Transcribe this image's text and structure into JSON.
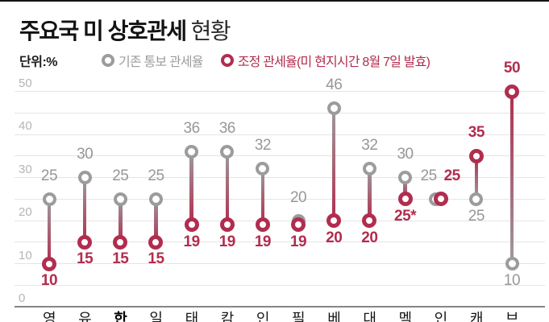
{
  "title": {
    "bold": "주요국 미 상호관세",
    "regular": "현황"
  },
  "unit_label": "단위:%",
  "legend": {
    "existing": "기존 통보 관세율",
    "adjusted": "조정 관세율(미 현지시간 8월 7일 발효)"
  },
  "colors": {
    "red": "#b12d4e",
    "gray": "#9c9c9e",
    "gray_label": "#97979b",
    "tick": "#b5b5b7",
    "grid": "#e4e4e6",
    "axis": "#85858a"
  },
  "chart_data": {
    "type": "dumbbell",
    "unit": "%",
    "ylim": [
      0,
      50
    ],
    "yticks": [
      0,
      10,
      20,
      30,
      40,
      50
    ],
    "grid_step": 5,
    "grid": "on",
    "categories": [
      "영",
      "유",
      "한",
      "일",
      "태",
      "캄",
      "인",
      "필",
      "베",
      "대",
      "멕",
      "인",
      "캐",
      "브"
    ],
    "highlighted_category_index": 2,
    "series": [
      {
        "name": "기존 통보 관세율",
        "values": [
          25,
          30,
          25,
          25,
          36,
          36,
          32,
          20,
          46,
          32,
          30,
          25,
          25,
          10
        ]
      },
      {
        "name": "조정 관세율",
        "values": [
          10,
          15,
          15,
          15,
          19,
          19,
          19,
          19,
          20,
          20,
          25,
          25,
          35,
          50
        ]
      }
    ],
    "adjusted_display_labels": [
      "10",
      "15",
      "15",
      "15",
      "19",
      "19",
      "19",
      "19",
      "20",
      "20",
      "25*",
      "25",
      "35",
      "50"
    ]
  }
}
